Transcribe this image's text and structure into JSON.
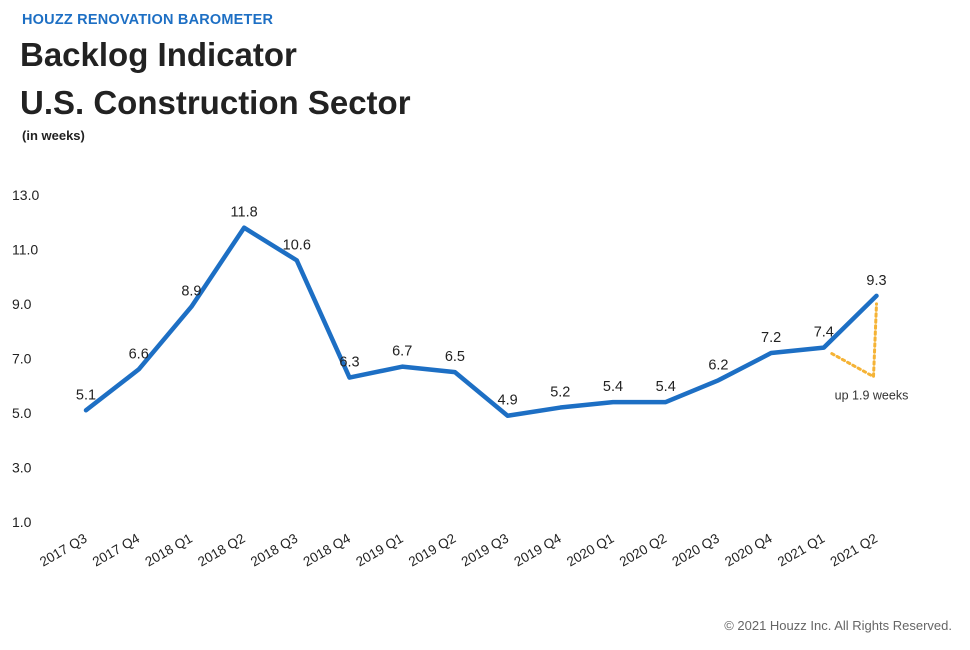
{
  "header": {
    "kicker": "HOUZZ RENOVATION BAROMETER",
    "title_line1": "Backlog Indicator",
    "title_line2": "U.S. Construction Sector",
    "unit": "(in weeks)"
  },
  "footer": {
    "copyright": "© 2021 Houzz Inc. All Rights Reserved."
  },
  "colors": {
    "line": "#1d6fc4",
    "annotation": "#f5b335",
    "kicker": "#1d6fc4",
    "text": "#222222"
  },
  "chart_data": {
    "type": "line",
    "categories": [
      "2017 Q3",
      "2017 Q4",
      "2018 Q1",
      "2018 Q2",
      "2018 Q3",
      "2018 Q4",
      "2019 Q1",
      "2019 Q2",
      "2019 Q3",
      "2019 Q4",
      "2020 Q1",
      "2020 Q2",
      "2020 Q3",
      "2020 Q4",
      "2021 Q1",
      "2021 Q2"
    ],
    "values": [
      5.1,
      6.6,
      8.9,
      11.8,
      10.6,
      6.3,
      6.7,
      6.5,
      4.9,
      5.2,
      5.4,
      5.4,
      6.2,
      7.2,
      7.4,
      9.3
    ],
    "value_labels": [
      "5.1",
      "6.6",
      "8.9",
      "11.8",
      "10.6",
      "6.3",
      "6.7",
      "6.5",
      "4.9",
      "5.2",
      "5.4",
      "5.4",
      "6.2",
      "7.2",
      "7.4",
      "9.3"
    ],
    "yticks": [
      1.0,
      3.0,
      5.0,
      7.0,
      9.0,
      11.0,
      13.0
    ],
    "ytick_labels": [
      "1.0",
      "3.0",
      "5.0",
      "7.0",
      "9.0",
      "11.0",
      "13.0"
    ],
    "ylim": [
      1.0,
      13.0
    ],
    "grid": false,
    "annotation": {
      "text": "up 1.9 weeks",
      "from_category": "2021 Q1",
      "to_category": "2021 Q2"
    }
  }
}
